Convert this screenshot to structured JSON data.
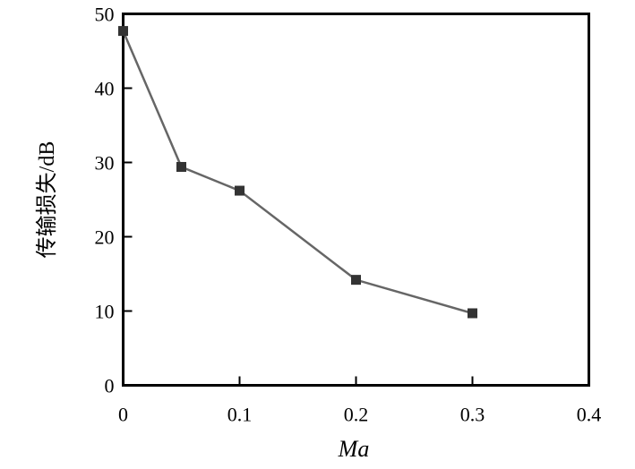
{
  "chart_data": {
    "type": "line",
    "x": [
      0,
      0.05,
      0.1,
      0.2,
      0.3
    ],
    "series": [
      {
        "values": [
          47.7,
          29.4,
          26.2,
          14.2,
          9.7
        ]
      }
    ],
    "xlabel": "Ma",
    "ylabel": "传输损失/dB",
    "xlim": [
      0,
      0.4
    ],
    "ylim": [
      0,
      50
    ],
    "xticks": [
      "0",
      "0.1",
      "0.2",
      "0.3",
      "0.4"
    ],
    "yticks": [
      "0",
      "10",
      "20",
      "30",
      "40",
      "50"
    ],
    "grid": false,
    "marker": "square",
    "line_color": "#666666",
    "marker_color": "#333333"
  }
}
